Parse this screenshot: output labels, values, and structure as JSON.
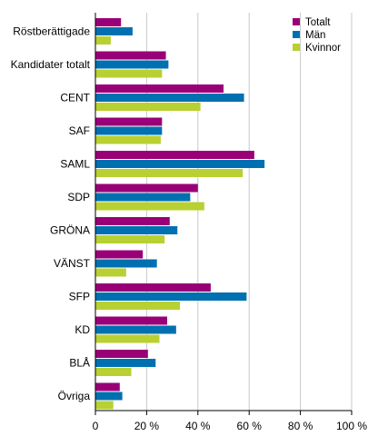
{
  "chart_data": {
    "type": "bar",
    "orientation": "horizontal",
    "title": "",
    "xlabel": "",
    "ylabel": "",
    "xlim": [
      0,
      100
    ],
    "x_ticks": [
      0,
      20,
      40,
      60,
      80,
      100
    ],
    "x_tick_labels": [
      "0",
      "20 %",
      "40 %",
      "60 %",
      "80 %",
      "100 %"
    ],
    "grid": "vertical",
    "legend_position": "top-right",
    "categories": [
      "Röstberättigade",
      "Kandidater totalt",
      "CENT",
      "SAF",
      "SAML",
      "SDP",
      "GRÖNA",
      "VÄNST",
      "SFP",
      "KD",
      "BLÅ",
      "Övriga"
    ],
    "series": [
      {
        "name": "Totalt",
        "color": "#990077",
        "values": [
          10,
          27.5,
          50,
          26,
          62,
          40,
          29,
          18.5,
          45,
          28,
          20.5,
          9.5
        ]
      },
      {
        "name": "Män",
        "color": "#0070b0",
        "values": [
          14.5,
          28.5,
          58,
          26,
          66,
          37,
          32,
          24,
          59,
          31.5,
          23.5,
          10.5
        ]
      },
      {
        "name": "Kvinnor",
        "color": "#b8d032",
        "values": [
          6,
          26,
          41,
          25.5,
          57.5,
          42.5,
          27,
          12,
          33,
          25,
          14,
          7
        ]
      }
    ]
  }
}
